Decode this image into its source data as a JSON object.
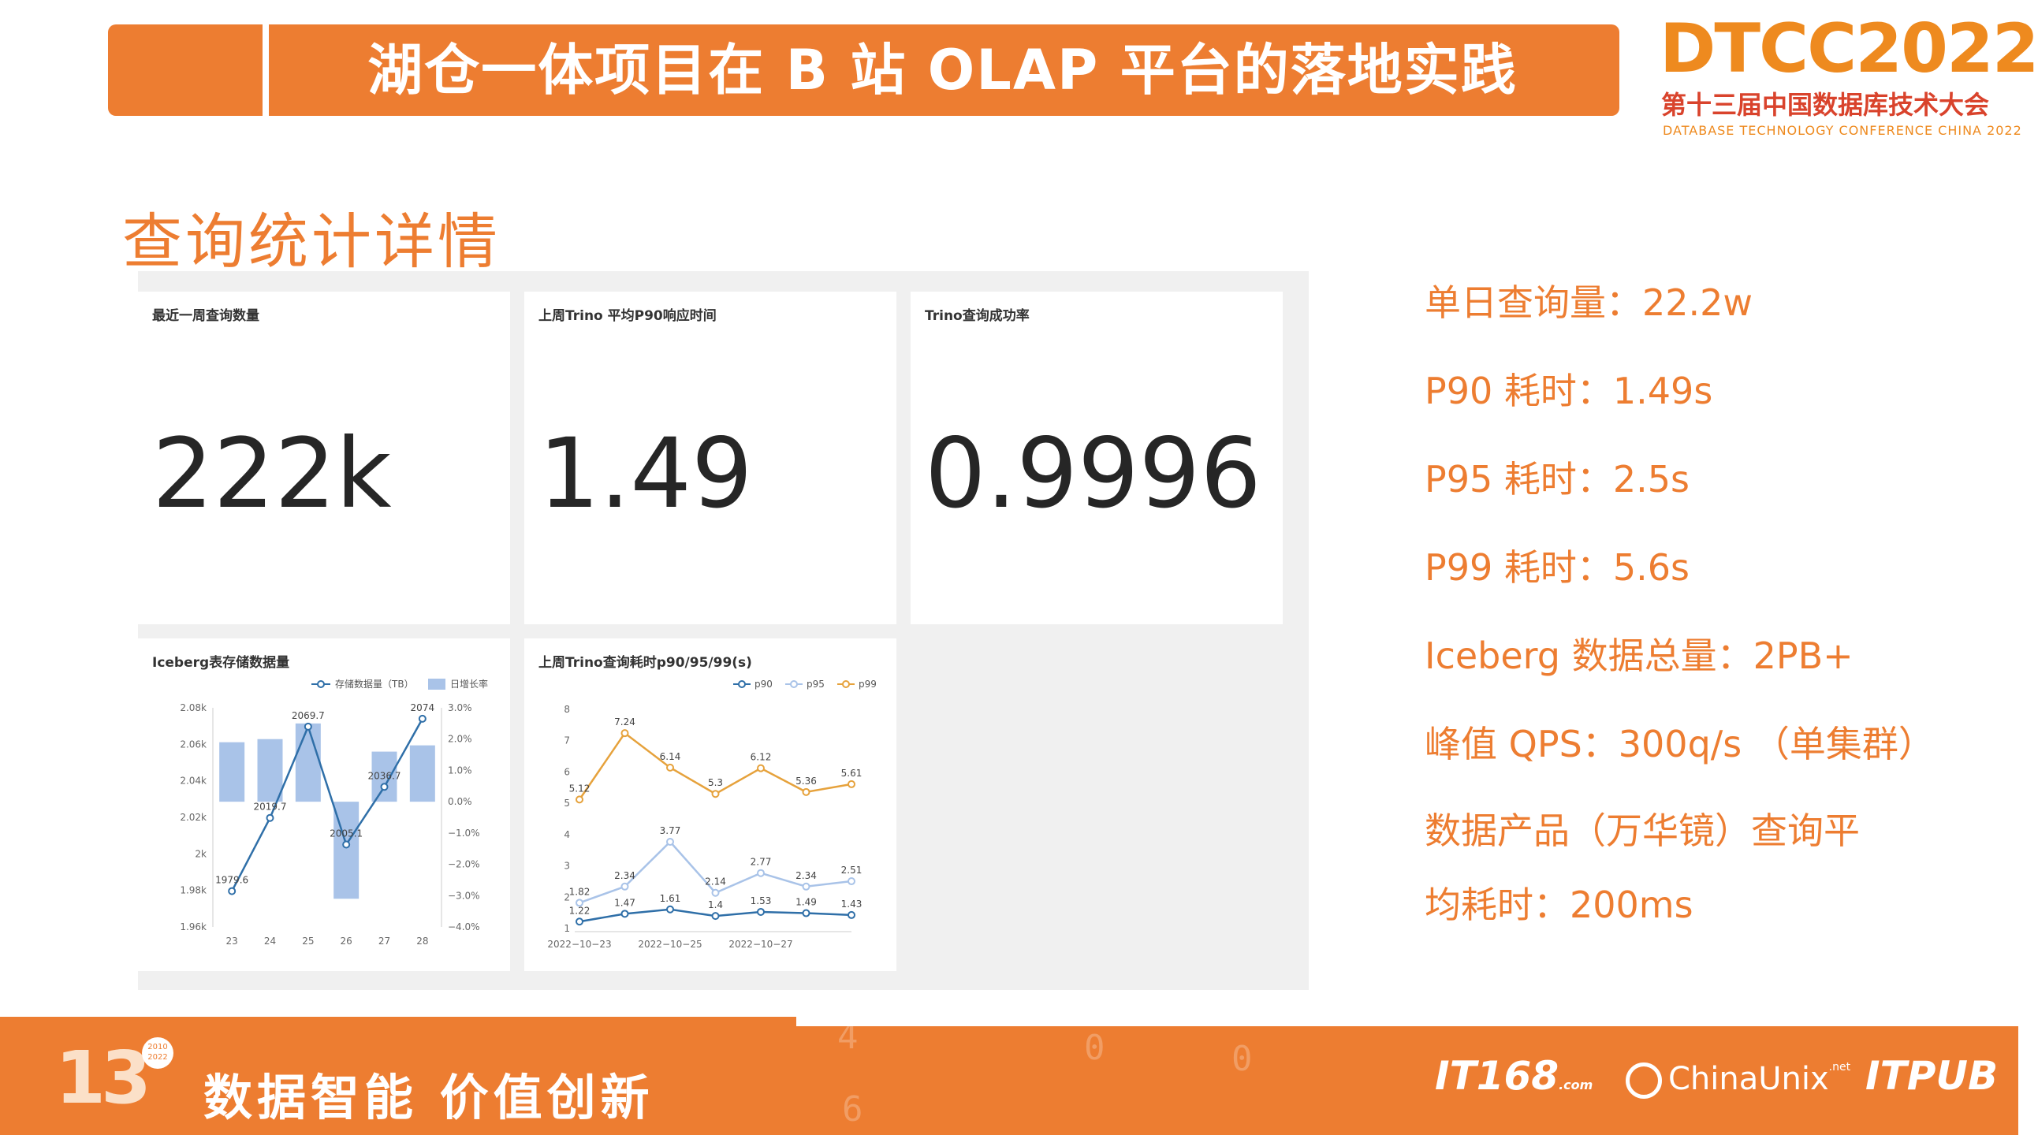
{
  "header": {
    "title": "湖仓一体项目在 B 站 OLAP 平台的落地实践",
    "logo_main": "DTCC2022",
    "logo_sub": "第十三届中国数据库技术大会",
    "logo_en": "DATABASE TECHNOLOGY CONFERENCE CHINA 2022"
  },
  "section_title": "查询统计详情",
  "cards": [
    {
      "title": "最近一周查询数量",
      "value": "222k"
    },
    {
      "title": "上周Trino 平均P90响应时间",
      "value": "1.49"
    },
    {
      "title": "Trino查询成功率",
      "value": "0.9996"
    }
  ],
  "chart_data": [
    {
      "type": "bar",
      "title": "Iceberg表存储数据量",
      "categories": [
        "23",
        "24",
        "25",
        "26",
        "27",
        "28"
      ],
      "series": [
        {
          "name": "存储数据量（TB）",
          "type": "line",
          "values": [
            1979.6,
            2019.7,
            2069.7,
            2005.1,
            2036.7,
            2074
          ]
        },
        {
          "name": "日增长率",
          "type": "bar",
          "values": [
            1.9,
            2.0,
            2.5,
            -3.1,
            1.6,
            1.8
          ]
        }
      ],
      "data_labels": [
        "1979.6",
        "2019.7",
        "2069.7",
        "2005.1",
        "2036.7",
        "2074"
      ],
      "y_left_ticks": [
        "2.08k",
        "2.06k",
        "2.04k",
        "2.02k",
        "2k",
        "1.98k",
        "1.96k"
      ],
      "y_left_lim": [
        1960,
        2080
      ],
      "y_right_ticks": [
        "3.0%",
        "2.0%",
        "1.0%",
        "0.0%",
        "−1.0%",
        "−2.0%",
        "−3.0%",
        "−4.0%"
      ],
      "y_right_lim": [
        -4,
        3
      ],
      "legend": "top-right",
      "colors": {
        "line": "#2f6fa8",
        "bar": "#a9c3e8"
      }
    },
    {
      "type": "line",
      "title": "上周Trino查询耗时p90/95/99(s)",
      "x_ticks": [
        "2022−10−23",
        "2022−10−25",
        "2022−10−27"
      ],
      "series": [
        {
          "name": "p90",
          "values": [
            1.22,
            1.47,
            1.61,
            1.4,
            1.53,
            1.49,
            1.43
          ]
        },
        {
          "name": "p95",
          "values": [
            1.82,
            2.34,
            3.77,
            2.14,
            2.77,
            2.34,
            2.51
          ]
        },
        {
          "name": "p99",
          "values": [
            5.12,
            7.24,
            6.14,
            5.3,
            6.12,
            5.36,
            5.61
          ]
        }
      ],
      "y_ticks": [
        "8",
        "7",
        "6",
        "5",
        "4",
        "3",
        "2",
        "1"
      ],
      "ylim": [
        1,
        8
      ],
      "legend": "top-right",
      "colors": {
        "p90": "#2f6fa8",
        "p95": "#a9c3e8",
        "p99": "#e6a23c"
      }
    }
  ],
  "stats": [
    "单日查询量：22.2w",
    "P90 耗时：1.49s",
    "P95 耗时：2.5s",
    "P99 耗时：5.6s",
    "Iceberg 数据总量：2PB+",
    "峰值 QPS：300q/s （单集群）",
    "数据产品（万华镜）查询平",
    "均耗时：200ms"
  ],
  "footer": {
    "anniversary": "13",
    "years_top": "2010",
    "years_bottom": "2022",
    "slogan": "数据智能  价值创新",
    "brand_1": "IT168",
    "brand_1_suffix": ".com",
    "brand_2": "ChinaUnix",
    "brand_2_suffix": ".net",
    "brand_3": "ITPUB"
  }
}
